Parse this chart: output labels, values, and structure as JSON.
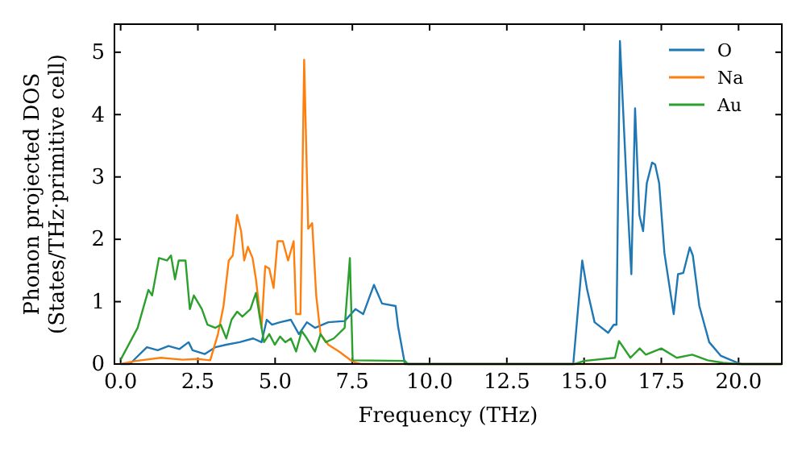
{
  "chart_data": {
    "type": "line",
    "xlabel": "Frequency (THz)",
    "ylabel": "Phonon projected DOS\n(States/THz·primitive cell)",
    "xlim": [
      -0.2,
      21.4
    ],
    "ylim": [
      0,
      5.45
    ],
    "xticks": [
      {
        "value": 0,
        "label": "0.0"
      },
      {
        "value": 2.5,
        "label": "2.5"
      },
      {
        "value": 5,
        "label": "5.0"
      },
      {
        "value": 7.5,
        "label": "7.5"
      },
      {
        "value": 10,
        "label": "10.0"
      },
      {
        "value": 12.5,
        "label": "12.5"
      },
      {
        "value": 15,
        "label": "15.0"
      },
      {
        "value": 17.5,
        "label": "17.5"
      },
      {
        "value": 20,
        "label": "20.0"
      }
    ],
    "yticks": [
      0,
      1,
      2,
      3,
      4,
      5
    ],
    "legend": "top right",
    "grid": false,
    "line_style": "solid",
    "marker": "none",
    "series": [
      {
        "name": "O",
        "color": "#1f77b4",
        "x": [
          0,
          0.3,
          0.5,
          0.85,
          1.2,
          1.55,
          1.9,
          2.2,
          2.33,
          2.72,
          3.07,
          3.42,
          3.85,
          4.29,
          4.56,
          4.73,
          4.9,
          5.16,
          5.51,
          5.77,
          6.03,
          6.29,
          6.72,
          7.25,
          7.6,
          7.85,
          8.2,
          8.46,
          8.9,
          8.98,
          9.2,
          14.65,
          14.94,
          15.1,
          15.34,
          15.78,
          15.96,
          16.05,
          16.16,
          16.39,
          16.53,
          16.65,
          16.79,
          16.91,
          17.03,
          17.2,
          17.3,
          17.43,
          17.6,
          17.9,
          18.04,
          18.21,
          18.42,
          18.52,
          18.73,
          19.05,
          19.43,
          19.96,
          20.1,
          21.4
        ],
        "values": [
          0,
          0,
          0.1,
          0.27,
          0.22,
          0.29,
          0.24,
          0.35,
          0.22,
          0.16,
          0.27,
          0.31,
          0.35,
          0.41,
          0.35,
          0.71,
          0.63,
          0.67,
          0.71,
          0.48,
          0.67,
          0.58,
          0.67,
          0.69,
          0.88,
          0.8,
          1.27,
          0.97,
          0.93,
          0.6,
          0,
          0,
          1.66,
          1.19,
          0.67,
          0.5,
          0.63,
          0.63,
          5.18,
          2.73,
          1.44,
          4.1,
          2.39,
          2.13,
          2.9,
          3.23,
          3.2,
          2.9,
          1.78,
          0.8,
          1.44,
          1.46,
          1.87,
          1.74,
          0.93,
          0.35,
          0.13,
          0.02,
          0,
          0
        ]
      },
      {
        "name": "Na",
        "color": "#ff7f0e",
        "x": [
          0,
          0.5,
          1.3,
          2.0,
          2.5,
          2.9,
          3.15,
          3.33,
          3.5,
          3.63,
          3.77,
          3.9,
          4.0,
          4.12,
          4.27,
          4.38,
          4.56,
          4.68,
          4.81,
          4.95,
          5.08,
          5.25,
          5.42,
          5.6,
          5.68,
          5.82,
          5.94,
          6.07,
          6.2,
          6.33,
          6.47,
          6.72,
          7.07,
          7.42,
          7.6,
          7.8,
          21.4
        ],
        "values": [
          0,
          0.05,
          0.1,
          0.07,
          0.08,
          0.06,
          0.48,
          0.93,
          1.66,
          1.74,
          2.39,
          2.13,
          1.66,
          1.88,
          1.7,
          1.36,
          0.58,
          1.57,
          1.53,
          1.22,
          1.97,
          1.97,
          1.66,
          1.97,
          0.8,
          0.8,
          4.88,
          2.17,
          2.26,
          1.1,
          0.48,
          0.31,
          0.2,
          0.07,
          0.02,
          0,
          0
        ]
      },
      {
        "name": "Au",
        "color": "#2ca02c",
        "x": [
          0,
          0.55,
          0.9,
          1.02,
          1.24,
          1.5,
          1.63,
          1.76,
          1.88,
          2.1,
          2.24,
          2.37,
          2.63,
          2.81,
          3.07,
          3.24,
          3.42,
          3.59,
          3.77,
          3.94,
          4.2,
          4.38,
          4.5,
          4.64,
          4.81,
          4.99,
          5.16,
          5.33,
          5.51,
          5.68,
          5.86,
          6.03,
          6.29,
          6.47,
          6.64,
          6.9,
          7.25,
          7.42,
          7.51,
          9.2,
          9.3,
          14.7,
          15.0,
          16.0,
          16.13,
          16.5,
          16.8,
          17.0,
          17.5,
          18.0,
          18.5,
          19.0,
          19.5,
          20.0,
          21.4
        ],
        "values": [
          0.07,
          0.58,
          1.19,
          1.1,
          1.7,
          1.66,
          1.74,
          1.36,
          1.66,
          1.66,
          0.88,
          1.1,
          0.88,
          0.63,
          0.58,
          0.63,
          0.41,
          0.71,
          0.84,
          0.76,
          0.88,
          1.14,
          0.76,
          0.35,
          0.48,
          0.31,
          0.44,
          0.35,
          0.41,
          0.2,
          0.53,
          0.41,
          0.2,
          0.48,
          0.35,
          0.41,
          0.58,
          1.7,
          0.06,
          0.05,
          0,
          0,
          0.05,
          0.1,
          0.37,
          0.1,
          0.25,
          0.15,
          0.25,
          0.1,
          0.15,
          0.06,
          0.02,
          0,
          0
        ]
      }
    ]
  }
}
